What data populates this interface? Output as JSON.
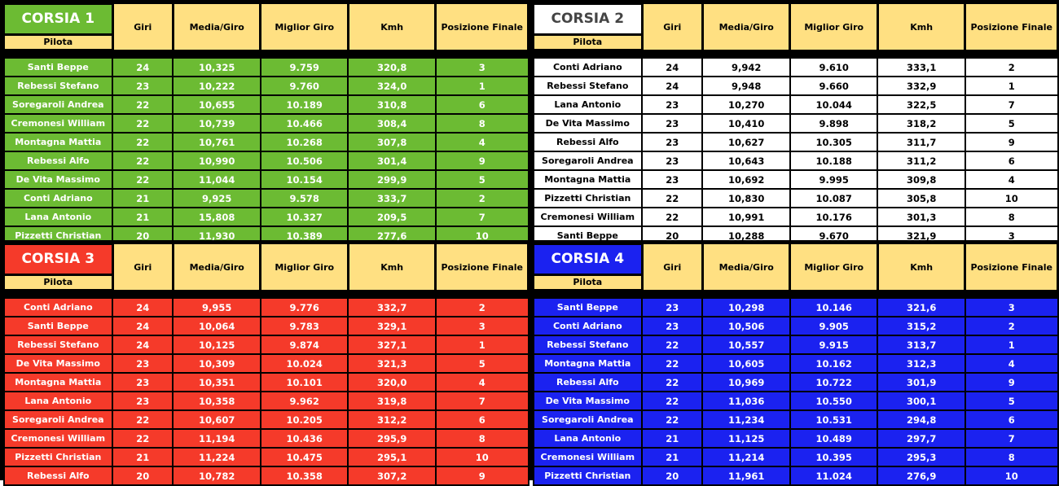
{
  "headers": {
    "pilota": "Pilota",
    "giri": "Giri",
    "media": "Media/Giro",
    "best": "Miglior Giro",
    "kmh": "Kmh",
    "pos": "Posizione Finale"
  },
  "lanes": [
    {
      "title": "CORSIA 1",
      "color": "#6cbb33",
      "title_text_color": "#ffffff",
      "rows": [
        {
          "name": "Santi Beppe",
          "giri": "24",
          "media": "10,325",
          "best": "9.759",
          "kmh": "320,8",
          "pos": "3"
        },
        {
          "name": "Rebessi Stefano",
          "giri": "23",
          "media": "10,222",
          "best": "9.760",
          "kmh": "324,0",
          "pos": "1"
        },
        {
          "name": "Soregaroli Andrea",
          "giri": "22",
          "media": "10,655",
          "best": "10.189",
          "kmh": "310,8",
          "pos": "6"
        },
        {
          "name": "Cremonesi William",
          "giri": "22",
          "media": "10,739",
          "best": "10.466",
          "kmh": "308,4",
          "pos": "8"
        },
        {
          "name": "Montagna Mattia",
          "giri": "22",
          "media": "10,761",
          "best": "10.268",
          "kmh": "307,8",
          "pos": "4"
        },
        {
          "name": "Rebessi Alfo",
          "giri": "22",
          "media": "10,990",
          "best": "10.506",
          "kmh": "301,4",
          "pos": "9"
        },
        {
          "name": "De Vita Massimo",
          "giri": "22",
          "media": "11,044",
          "best": "10.154",
          "kmh": "299,9",
          "pos": "5"
        },
        {
          "name": "Conti Adriano",
          "giri": "21",
          "media": "9,925",
          "best": "9.578",
          "kmh": "333,7",
          "pos": "2"
        },
        {
          "name": "Lana Antonio",
          "giri": "21",
          "media": "15,808",
          "best": "10.327",
          "kmh": "209,5",
          "pos": "7"
        },
        {
          "name": "Pizzetti Christian",
          "giri": "20",
          "media": "11,930",
          "best": "10.389",
          "kmh": "277,6",
          "pos": "10"
        }
      ]
    },
    {
      "title": "CORSIA 2",
      "color": "#ffffff",
      "title_text_color": "#444444",
      "rows": [
        {
          "name": "Conti Adriano",
          "giri": "24",
          "media": "9,942",
          "best": "9.610",
          "kmh": "333,1",
          "pos": "2"
        },
        {
          "name": "Rebessi Stefano",
          "giri": "24",
          "media": "9,948",
          "best": "9.660",
          "kmh": "332,9",
          "pos": "1"
        },
        {
          "name": "Lana Antonio",
          "giri": "23",
          "media": "10,270",
          "best": "10.044",
          "kmh": "322,5",
          "pos": "7"
        },
        {
          "name": "De Vita Massimo",
          "giri": "23",
          "media": "10,410",
          "best": "9.898",
          "kmh": "318,2",
          "pos": "5"
        },
        {
          "name": "Rebessi Alfo",
          "giri": "23",
          "media": "10,627",
          "best": "10.305",
          "kmh": "311,7",
          "pos": "9"
        },
        {
          "name": "Soregaroli Andrea",
          "giri": "23",
          "media": "10,643",
          "best": "10.188",
          "kmh": "311,2",
          "pos": "6"
        },
        {
          "name": "Montagna Mattia",
          "giri": "23",
          "media": "10,692",
          "best": "9.995",
          "kmh": "309,8",
          "pos": "4"
        },
        {
          "name": "Pizzetti Christian",
          "giri": "22",
          "media": "10,830",
          "best": "10.087",
          "kmh": "305,8",
          "pos": "10"
        },
        {
          "name": "Cremonesi William",
          "giri": "22",
          "media": "10,991",
          "best": "10.176",
          "kmh": "301,3",
          "pos": "8"
        },
        {
          "name": "Santi Beppe",
          "giri": "20",
          "media": "10,288",
          "best": "9.670",
          "kmh": "321,9",
          "pos": "3"
        }
      ]
    },
    {
      "title": "CORSIA 3",
      "color": "#f53a2a",
      "title_text_color": "#ffffff",
      "rows": [
        {
          "name": "Conti Adriano",
          "giri": "24",
          "media": "9,955",
          "best": "9.776",
          "kmh": "332,7",
          "pos": "2"
        },
        {
          "name": "Santi Beppe",
          "giri": "24",
          "media": "10,064",
          "best": "9.783",
          "kmh": "329,1",
          "pos": "3"
        },
        {
          "name": "Rebessi Stefano",
          "giri": "24",
          "media": "10,125",
          "best": "9.874",
          "kmh": "327,1",
          "pos": "1"
        },
        {
          "name": "De Vita Massimo",
          "giri": "23",
          "media": "10,309",
          "best": "10.024",
          "kmh": "321,3",
          "pos": "5"
        },
        {
          "name": "Montagna Mattia",
          "giri": "23",
          "media": "10,351",
          "best": "10.101",
          "kmh": "320,0",
          "pos": "4"
        },
        {
          "name": "Lana Antonio",
          "giri": "23",
          "media": "10,358",
          "best": "9.962",
          "kmh": "319,8",
          "pos": "7"
        },
        {
          "name": "Soregaroli Andrea",
          "giri": "22",
          "media": "10,607",
          "best": "10.205",
          "kmh": "312,2",
          "pos": "6"
        },
        {
          "name": "Cremonesi William",
          "giri": "22",
          "media": "11,194",
          "best": "10.436",
          "kmh": "295,9",
          "pos": "8"
        },
        {
          "name": "Pizzetti Christian",
          "giri": "21",
          "media": "11,224",
          "best": "10.475",
          "kmh": "295,1",
          "pos": "10"
        },
        {
          "name": "Rebessi Alfo",
          "giri": "20",
          "media": "10,782",
          "best": "10.358",
          "kmh": "307,2",
          "pos": "9"
        }
      ]
    },
    {
      "title": "CORSIA 4",
      "color": "#1b22f0",
      "title_text_color": "#ffffff",
      "rows": [
        {
          "name": "Santi Beppe",
          "giri": "23",
          "media": "10,298",
          "best": "10.146",
          "kmh": "321,6",
          "pos": "3"
        },
        {
          "name": "Conti Adriano",
          "giri": "23",
          "media": "10,506",
          "best": "9.905",
          "kmh": "315,2",
          "pos": "2"
        },
        {
          "name": "Rebessi Stefano",
          "giri": "22",
          "media": "10,557",
          "best": "9.915",
          "kmh": "313,7",
          "pos": "1"
        },
        {
          "name": "Montagna Mattia",
          "giri": "22",
          "media": "10,605",
          "best": "10.162",
          "kmh": "312,3",
          "pos": "4"
        },
        {
          "name": "Rebessi Alfo",
          "giri": "22",
          "media": "10,969",
          "best": "10.722",
          "kmh": "301,9",
          "pos": "9"
        },
        {
          "name": "De Vita Massimo",
          "giri": "22",
          "media": "11,036",
          "best": "10.550",
          "kmh": "300,1",
          "pos": "5"
        },
        {
          "name": "Soregaroli Andrea",
          "giri": "22",
          "media": "11,234",
          "best": "10.531",
          "kmh": "294,8",
          "pos": "6"
        },
        {
          "name": "Lana Antonio",
          "giri": "21",
          "media": "11,125",
          "best": "10.489",
          "kmh": "297,7",
          "pos": "7"
        },
        {
          "name": "Cremonesi William",
          "giri": "21",
          "media": "11,214",
          "best": "10.395",
          "kmh": "295,3",
          "pos": "8"
        },
        {
          "name": "Pizzetti Christian",
          "giri": "20",
          "media": "11,961",
          "best": "11.024",
          "kmh": "276,9",
          "pos": "10"
        }
      ]
    }
  ]
}
